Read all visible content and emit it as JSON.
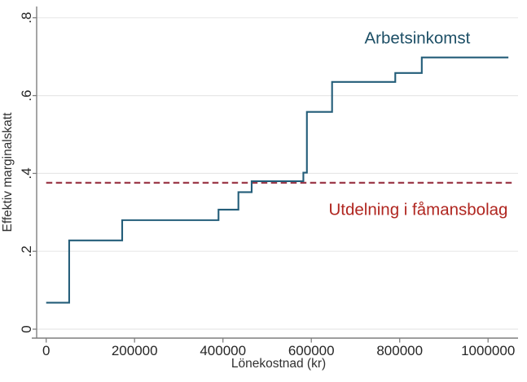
{
  "chart_data": {
    "type": "line",
    "subtype": "step-function",
    "title": "",
    "xlabel": "Lönekostnad (kr)",
    "ylabel": "Effektiv marginalskatt",
    "x_ticks": [
      0,
      200000,
      400000,
      600000,
      800000,
      1000000
    ],
    "x_tick_labels": [
      "0",
      "200000",
      "400000",
      "600000",
      "800000",
      "1000000"
    ],
    "y_ticks": [
      0,
      0.2,
      0.4,
      0.6,
      0.8
    ],
    "y_tick_labels": [
      "0",
      ".2",
      ".4",
      ".6",
      ".8"
    ],
    "xlim": [
      0,
      1060000
    ],
    "ylim": [
      0,
      0.8
    ],
    "grid": "horizontal",
    "legend_position": "none",
    "colors": {
      "labor_line": "#235d79",
      "labor_label": "#1d4f66",
      "dividend_line": "#9c3a4a",
      "dividend_label": "#b02620",
      "gridline": "#e8e8e8",
      "axis": "#7f7f7f"
    },
    "series": [
      {
        "name": "Arbetsinkomst",
        "style": "step",
        "color": "#235d79",
        "segments": [
          {
            "from": 0,
            "to": 52000,
            "rate": 0.068
          },
          {
            "from": 52000,
            "to": 172000,
            "rate": 0.228
          },
          {
            "from": 172000,
            "to": 390000,
            "rate": 0.28
          },
          {
            "from": 390000,
            "to": 435000,
            "rate": 0.307
          },
          {
            "from": 435000,
            "to": 465000,
            "rate": 0.352
          },
          {
            "from": 465000,
            "to": 582000,
            "rate": 0.38
          },
          {
            "from": 582000,
            "to": 590000,
            "rate": 0.402
          },
          {
            "from": 590000,
            "to": 647000,
            "rate": 0.558
          },
          {
            "from": 647000,
            "to": 790000,
            "rate": 0.635
          },
          {
            "from": 790000,
            "to": 850000,
            "rate": 0.658
          },
          {
            "from": 850000,
            "to": 1046000,
            "rate": 0.698
          }
        ]
      },
      {
        "name": "Utdelning i fåmansbolag",
        "style": "dashed-horizontal",
        "color": "#9c3a4a",
        "value": 0.376,
        "from": 0,
        "to": 1056000
      }
    ],
    "annotations": [
      {
        "text": "Arbetsinkomst",
        "x": 840000,
        "y": 0.748,
        "color": "#1d4f66"
      },
      {
        "text": "Utdelning i fåmansbolag",
        "x": 842000,
        "y": 0.308,
        "color": "#b02620"
      }
    ]
  }
}
